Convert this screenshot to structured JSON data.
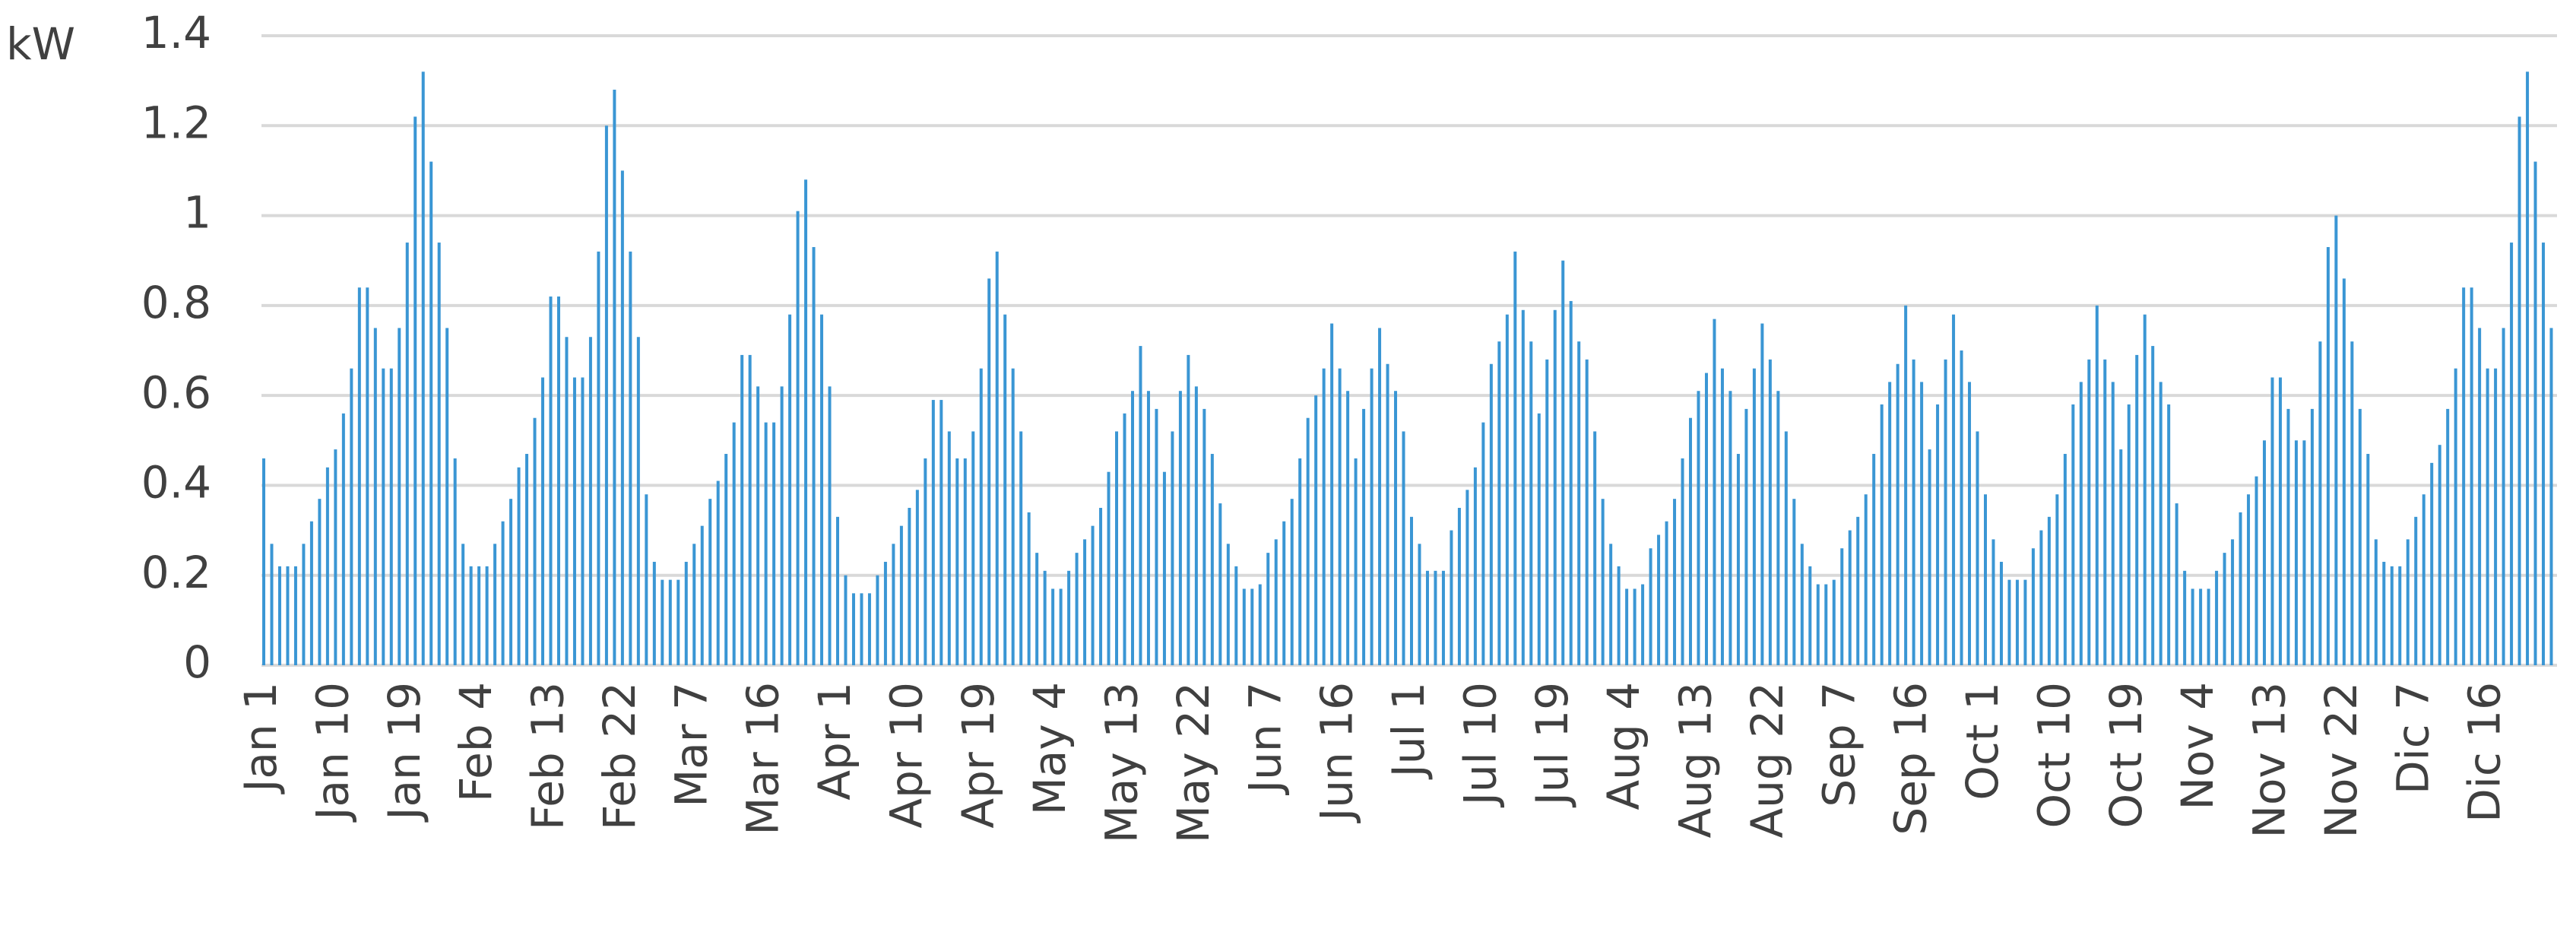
{
  "chart_data": {
    "type": "bar",
    "y_label": "kW",
    "categories": [
      "Jan 1",
      null,
      null,
      null,
      null,
      null,
      null,
      null,
      null,
      "Jan 10",
      null,
      null,
      null,
      null,
      null,
      null,
      null,
      null,
      "Jan 19",
      null,
      null,
      null,
      null,
      null,
      null,
      null,
      null,
      "Feb 4",
      null,
      null,
      null,
      null,
      null,
      null,
      null,
      null,
      "Feb 13",
      null,
      null,
      null,
      null,
      null,
      null,
      null,
      null,
      "Feb 22",
      null,
      null,
      null,
      null,
      null,
      null,
      null,
      null,
      "Mar 7",
      null,
      null,
      null,
      null,
      null,
      null,
      null,
      null,
      "Mar 16",
      null,
      null,
      null,
      null,
      null,
      null,
      null,
      null,
      "Apr 1",
      null,
      null,
      null,
      null,
      null,
      null,
      null,
      null,
      "Apr 10",
      null,
      null,
      null,
      null,
      null,
      null,
      null,
      null,
      "Apr 19",
      null,
      null,
      null,
      null,
      null,
      null,
      null,
      null,
      "May 4",
      null,
      null,
      null,
      null,
      null,
      null,
      null,
      null,
      "May 13",
      null,
      null,
      null,
      null,
      null,
      null,
      null,
      null,
      "May 22",
      null,
      null,
      null,
      null,
      null,
      null,
      null,
      null,
      "Jun 7",
      null,
      null,
      null,
      null,
      null,
      null,
      null,
      null,
      "Jun 16",
      null,
      null,
      null,
      null,
      null,
      null,
      null,
      null,
      "Jul 1",
      null,
      null,
      null,
      null,
      null,
      null,
      null,
      null,
      "Jul 10",
      null,
      null,
      null,
      null,
      null,
      null,
      null,
      null,
      "Jul 19",
      null,
      null,
      null,
      null,
      null,
      null,
      null,
      null,
      "Aug 4",
      null,
      null,
      null,
      null,
      null,
      null,
      null,
      null,
      "Aug 13",
      null,
      null,
      null,
      null,
      null,
      null,
      null,
      null,
      "Aug 22",
      null,
      null,
      null,
      null,
      null,
      null,
      null,
      null,
      "Sep 7",
      null,
      null,
      null,
      null,
      null,
      null,
      null,
      null,
      "Sep 16",
      null,
      null,
      null,
      null,
      null,
      null,
      null,
      null,
      "Oct 1",
      null,
      null,
      null,
      null,
      null,
      null,
      null,
      null,
      "Oct 10",
      null,
      null,
      null,
      null,
      null,
      null,
      null,
      null,
      "Oct 19",
      null,
      null,
      null,
      null,
      null,
      null,
      null,
      null,
      "Nov 4",
      null,
      null,
      null,
      null,
      null,
      null,
      null,
      null,
      "Nov 13",
      null,
      null,
      null,
      null,
      null,
      null,
      null,
      null,
      "Nov 22",
      null,
      null,
      null,
      null,
      null,
      null,
      null,
      null,
      "Dic 7",
      null,
      null,
      null,
      null,
      null,
      null,
      null,
      null,
      "Dic 16",
      null,
      null,
      null,
      null,
      null,
      null,
      null,
      null
    ],
    "values": [
      0.46,
      0.27,
      0.22,
      0.22,
      0.22,
      0.27,
      0.32,
      0.37,
      0.44,
      0.48,
      0.56,
      0.66,
      0.84,
      0.84,
      0.75,
      0.66,
      0.66,
      0.75,
      0.94,
      1.22,
      1.32,
      1.12,
      0.94,
      0.75,
      0.46,
      0.27,
      0.22,
      0.22,
      0.22,
      0.27,
      0.32,
      0.37,
      0.44,
      0.47,
      0.55,
      0.64,
      0.82,
      0.82,
      0.73,
      0.64,
      0.64,
      0.73,
      0.92,
      1.2,
      1.28,
      1.1,
      0.92,
      0.73,
      0.38,
      0.23,
      0.19,
      0.19,
      0.19,
      0.23,
      0.27,
      0.31,
      0.37,
      0.41,
      0.47,
      0.54,
      0.69,
      0.69,
      0.62,
      0.54,
      0.54,
      0.62,
      0.78,
      1.01,
      1.08,
      0.93,
      0.78,
      0.62,
      0.33,
      0.2,
      0.16,
      0.16,
      0.16,
      0.2,
      0.23,
      0.27,
      0.31,
      0.35,
      0.39,
      0.46,
      0.59,
      0.59,
      0.52,
      0.46,
      0.46,
      0.52,
      0.66,
      0.86,
      0.92,
      0.78,
      0.66,
      0.52,
      0.34,
      0.25,
      0.21,
      0.17,
      0.17,
      0.21,
      0.25,
      0.28,
      0.31,
      0.35,
      0.43,
      0.52,
      0.56,
      0.61,
      0.71,
      0.61,
      0.57,
      0.43,
      0.52,
      0.61,
      0.69,
      0.62,
      0.57,
      0.47,
      0.36,
      0.27,
      0.22,
      0.17,
      0.17,
      0.18,
      0.25,
      0.28,
      0.32,
      0.37,
      0.46,
      0.55,
      0.6,
      0.66,
      0.76,
      0.66,
      0.61,
      0.46,
      0.57,
      0.66,
      0.75,
      0.67,
      0.61,
      0.52,
      0.33,
      0.27,
      0.21,
      0.21,
      0.21,
      0.3,
      0.35,
      0.39,
      0.44,
      0.54,
      0.67,
      0.72,
      0.78,
      0.92,
      0.79,
      0.72,
      0.56,
      0.68,
      0.79,
      0.9,
      0.81,
      0.72,
      0.68,
      0.52,
      0.37,
      0.27,
      0.22,
      0.17,
      0.17,
      0.18,
      0.26,
      0.29,
      0.32,
      0.37,
      0.46,
      0.55,
      0.61,
      0.65,
      0.77,
      0.66,
      0.61,
      0.47,
      0.57,
      0.66,
      0.76,
      0.68,
      0.61,
      0.52,
      0.37,
      0.27,
      0.22,
      0.18,
      0.18,
      0.19,
      0.26,
      0.3,
      0.33,
      0.38,
      0.47,
      0.58,
      0.63,
      0.67,
      0.8,
      0.68,
      0.63,
      0.48,
      0.58,
      0.68,
      0.78,
      0.7,
      0.63,
      0.52,
      0.38,
      0.28,
      0.23,
      0.19,
      0.19,
      0.19,
      0.26,
      0.3,
      0.33,
      0.38,
      0.47,
      0.58,
      0.63,
      0.68,
      0.8,
      0.68,
      0.63,
      0.48,
      0.58,
      0.69,
      0.78,
      0.71,
      0.63,
      0.58,
      0.36,
      0.21,
      0.17,
      0.17,
      0.17,
      0.21,
      0.25,
      0.28,
      0.34,
      0.38,
      0.42,
      0.5,
      0.64,
      0.64,
      0.57,
      0.5,
      0.5,
      0.57,
      0.72,
      0.93,
      1.0,
      0.86,
      0.72,
      0.57,
      0.47,
      0.28,
      0.23,
      0.22,
      0.22,
      0.28,
      0.33,
      0.38,
      0.45,
      0.49,
      0.57,
      0.66,
      0.84,
      0.84,
      0.75,
      0.66,
      0.66,
      0.75,
      0.94,
      1.22,
      1.32,
      1.12,
      0.94,
      0.75
    ],
    "color": "#3a96d4",
    "ylim": [
      0,
      1.4
    ],
    "yticks": [
      0,
      0.2,
      0.4,
      0.6,
      0.8,
      1,
      1.2,
      1.4
    ],
    "grid": true
  }
}
